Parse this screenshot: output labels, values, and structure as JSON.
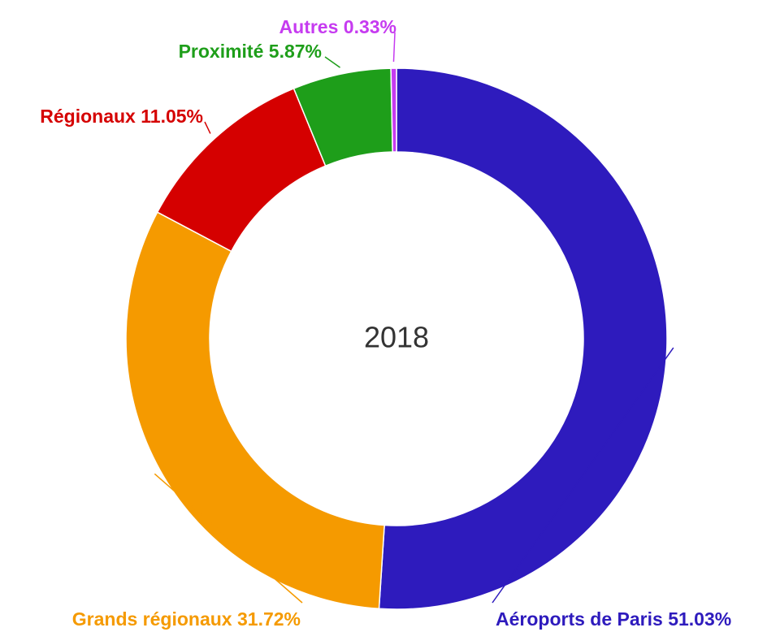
{
  "chart_data": {
    "type": "donut",
    "title": "2018",
    "categories": [
      "Aéroports de Paris",
      "Grands régionaux",
      "Régionaux",
      "Proximité",
      "Autres"
    ],
    "values": [
      51.03,
      31.72,
      11.05,
      5.87,
      0.33
    ],
    "value_labels": [
      "51.03%",
      "31.72%",
      "11.05%",
      "5.87%",
      "0.33%"
    ],
    "colors": [
      "#2e1bbd",
      "#f59a00",
      "#d50000",
      "#1e9e1a",
      "#c63bf0"
    ]
  }
}
